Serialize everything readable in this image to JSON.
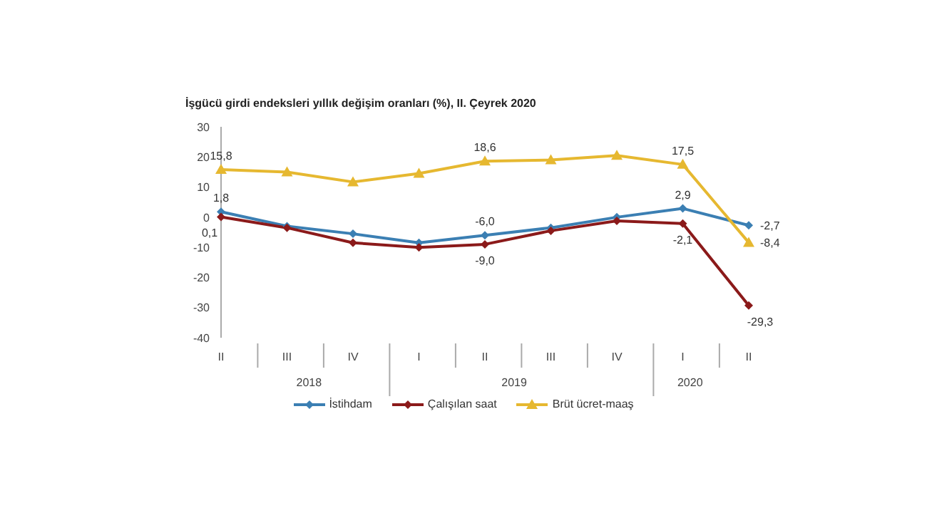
{
  "chart_data": {
    "type": "line",
    "title": "İşgücü girdi endeksleri yıllık değişim oranları (%), II. Çeyrek 2020",
    "categories": [
      "II",
      "III",
      "IV",
      "I",
      "II",
      "III",
      "IV",
      "I",
      "II"
    ],
    "annotations": [
      "2018",
      "2019",
      "2020"
    ],
    "ylim": [
      -40,
      30
    ],
    "yticks": [
      -40,
      -30,
      -20,
      -10,
      0,
      10,
      20,
      30
    ],
    "grid": false,
    "legend": "bottom",
    "line_style": "solid",
    "series": [
      {
        "name": "İstihdam",
        "color": "#3b7fb3",
        "marker": "diamond",
        "values": [
          1.8,
          -3,
          -5.5,
          -8.5,
          -6.0,
          -3.5,
          0,
          2.9,
          -2.7
        ],
        "value_labels": [
          "1,8",
          null,
          null,
          null,
          "-6,0",
          null,
          null,
          "2,9",
          "-2,7"
        ]
      },
      {
        "name": "Çalışılan saat",
        "color": "#8b1a1a",
        "marker": "diamond",
        "values": [
          0.1,
          -3.5,
          -8.5,
          -10,
          -9.0,
          -4.5,
          -1.2,
          -2.1,
          -29.3
        ],
        "value_labels": [
          "0,1",
          null,
          null,
          null,
          "-9,0",
          null,
          null,
          "-2,1",
          "-29,3"
        ]
      },
      {
        "name": "Brüt ücret-maaş",
        "color": "#e6b830",
        "marker": "triangle",
        "values": [
          15.8,
          15,
          11.7,
          14.5,
          18.6,
          19,
          20.5,
          17.5,
          -8.4
        ],
        "value_labels": [
          "15,8",
          null,
          null,
          null,
          "18,6",
          null,
          null,
          "17,5",
          "-8,4"
        ]
      }
    ]
  }
}
